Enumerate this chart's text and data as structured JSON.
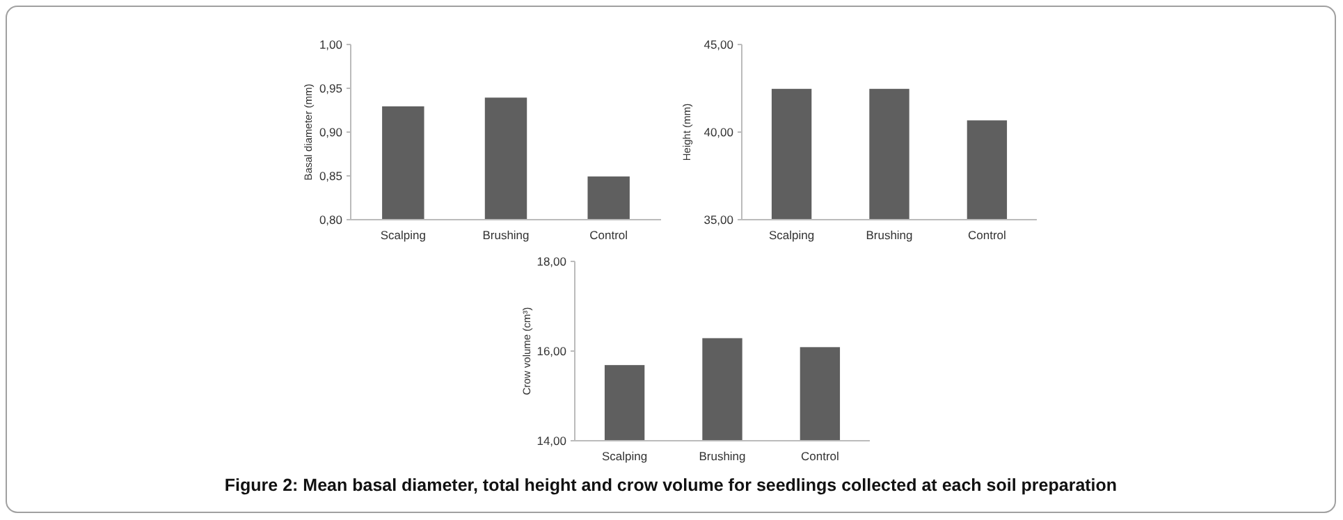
{
  "chart_data": [
    {
      "type": "bar",
      "ylabel": "Basal diameter (mm)",
      "categories": [
        "Scalping",
        "Brushing",
        "Control"
      ],
      "values": [
        0.93,
        0.94,
        0.85
      ],
      "color": "#5f5f5f",
      "ylim": [
        0.8,
        1.0
      ],
      "yticks": [
        {
          "value": 0.8,
          "label": "0,80"
        },
        {
          "value": 0.85,
          "label": "0,85"
        },
        {
          "value": 0.9,
          "label": "0,90"
        },
        {
          "value": 0.95,
          "label": "0,95"
        },
        {
          "value": 1.0,
          "label": "1,00"
        }
      ],
      "grid": false
    },
    {
      "type": "bar",
      "ylabel": "Height  (mm)",
      "categories": [
        "Scalping",
        "Brushing",
        "Control"
      ],
      "values": [
        42.5,
        42.5,
        40.7
      ],
      "color": "#5f5f5f",
      "ylim": [
        35,
        45
      ],
      "yticks": [
        {
          "value": 35,
          "label": "35,00"
        },
        {
          "value": 40,
          "label": "40,00"
        },
        {
          "value": 45,
          "label": "45,00"
        }
      ],
      "grid": false
    },
    {
      "type": "bar",
      "ylabel": "Crow volume (cm³)",
      "categories": [
        "Scalping",
        "Brushing",
        "Control"
      ],
      "values": [
        15.7,
        16.3,
        16.1
      ],
      "color": "#5f5f5f",
      "ylim": [
        14,
        18
      ],
      "yticks": [
        {
          "value": 14,
          "label": "14,00"
        },
        {
          "value": 16,
          "label": "16,00"
        },
        {
          "value": 18,
          "label": "18,00"
        }
      ],
      "grid": false,
      "annotations": [
        "Figure 2: Mean basal diameter, total height and crow volume for seedlings collected at each soil preparation"
      ]
    }
  ]
}
